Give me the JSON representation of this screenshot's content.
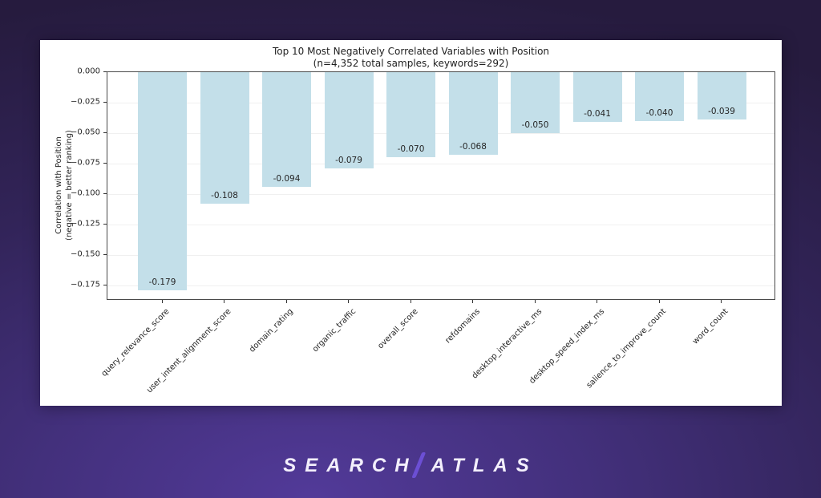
{
  "logo": {
    "left": "SEARCH",
    "right": "ATLAS",
    "slash_color": "#6c4fd4",
    "text_color": "#f3effc"
  },
  "chart_data": {
    "type": "bar",
    "title": "Top 10 Most Negatively Correlated Variables with Position",
    "subtitle": "(n=4,352 total samples, keywords=292)",
    "categories": [
      "query_relevance_score",
      "user_intent_alignment_score",
      "domain_rating",
      "organic_traffic",
      "overall_score",
      "refdomains",
      "desktop_interactive_ms",
      "desktop_speed_index_ms",
      "salience_to_improve_count",
      "word_count"
    ],
    "values": [
      -0.179,
      -0.108,
      -0.094,
      -0.079,
      -0.07,
      -0.068,
      -0.05,
      -0.041,
      -0.04,
      -0.039
    ],
    "bar_labels": [
      "-0.179",
      "-0.108",
      "-0.094",
      "-0.079",
      "-0.070",
      "-0.068",
      "-0.050",
      "-0.041",
      "-0.040",
      "-0.039"
    ],
    "bar_color": "#c3dfe9",
    "ylabel_line1": "Correlation with Position",
    "ylabel_line2": "(negative = better ranking)",
    "xlabel": "",
    "ylim": [
      -0.1875,
      0
    ],
    "yticks": [
      0.0,
      -0.025,
      -0.05,
      -0.075,
      -0.1,
      -0.125,
      -0.15,
      -0.175
    ],
    "ytick_labels": [
      "0.000",
      "−0.025",
      "−0.050",
      "−0.075",
      "−0.100",
      "−0.125",
      "−0.150",
      "−0.175"
    ],
    "grid": true,
    "legend": "none"
  }
}
